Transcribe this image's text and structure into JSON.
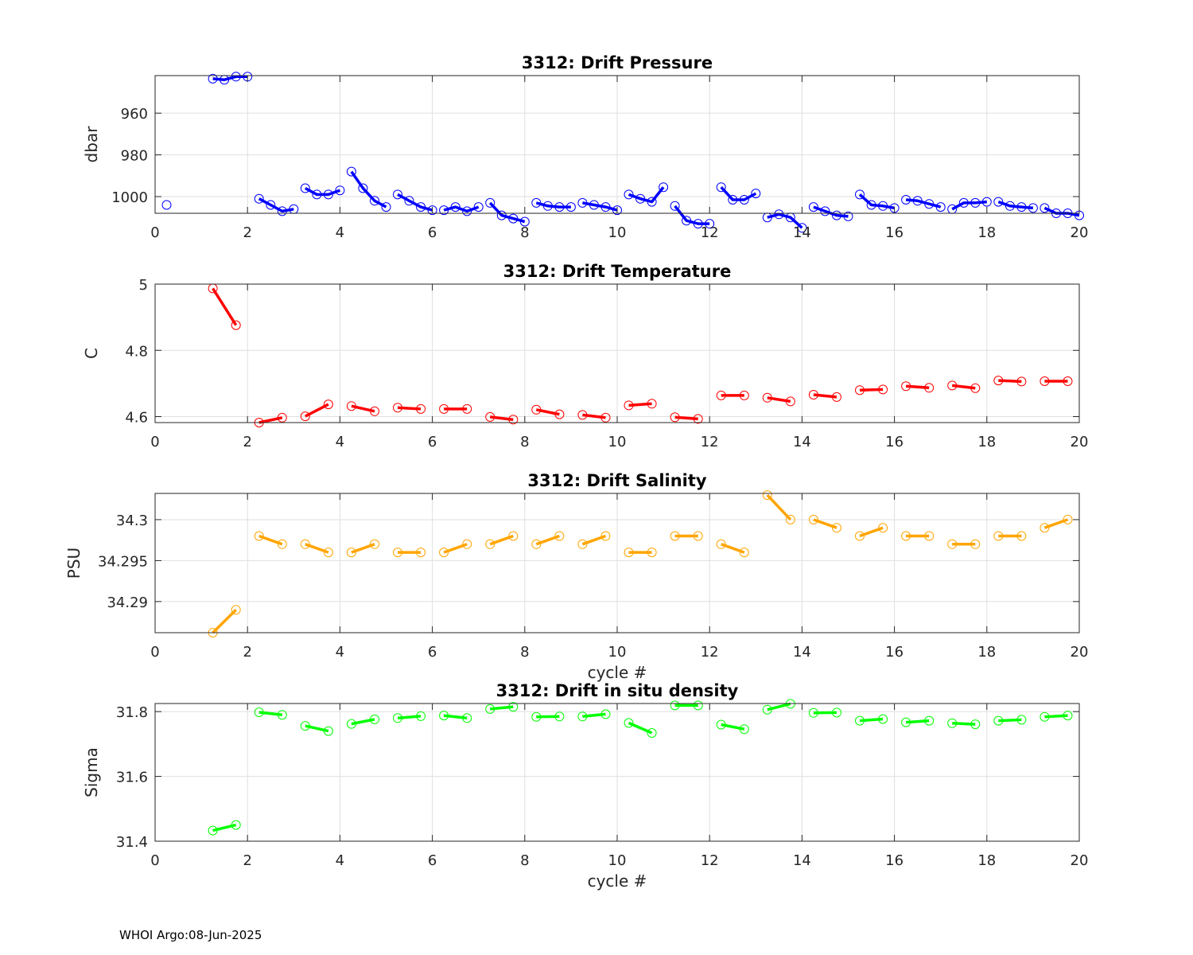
{
  "footer": "WHOI Argo:08-Jun-2025",
  "chart_data": [
    {
      "type": "line",
      "title": "3312: Drift Pressure",
      "xlabel": "",
      "ylabel": "dbar",
      "xlim": [
        0,
        20
      ],
      "ylim": [
        1008,
        942
      ],
      "y_reversed": true,
      "xticks": [
        0,
        2,
        4,
        6,
        8,
        10,
        12,
        14,
        16,
        18,
        20
      ],
      "yticks": [
        960,
        980,
        1000
      ],
      "grid": true,
      "color": "#0000ff",
      "series": [
        {
          "x": [
            0.25
          ],
          "y": [
            1004
          ]
        },
        {
          "x": [
            1.25,
            1.5,
            1.75,
            2.0
          ],
          "y": [
            943.5,
            944,
            942.5,
            942.5
          ]
        },
        {
          "x": [
            2.25,
            2.5,
            2.75,
            3.0
          ],
          "y": [
            1001,
            1004,
            1007,
            1006
          ]
        },
        {
          "x": [
            3.25,
            3.5,
            3.75,
            4.0
          ],
          "y": [
            996,
            999,
            999,
            997
          ]
        },
        {
          "x": [
            4.25,
            4.5,
            4.75,
            5.0
          ],
          "y": [
            988,
            996,
            1002,
            1005
          ]
        },
        {
          "x": [
            5.25,
            5.5,
            5.75,
            6.0
          ],
          "y": [
            999,
            1002,
            1005,
            1006.5
          ]
        },
        {
          "x": [
            6.25,
            6.5,
            6.75,
            7.0
          ],
          "y": [
            1006.5,
            1005,
            1007,
            1005
          ]
        },
        {
          "x": [
            7.25,
            7.5,
            7.75,
            8.0
          ],
          "y": [
            1003,
            1009,
            1010.5,
            1012
          ]
        },
        {
          "x": [
            8.25,
            8.5,
            8.75,
            9.0
          ],
          "y": [
            1003,
            1004.5,
            1005,
            1005
          ]
        },
        {
          "x": [
            9.25,
            9.5,
            9.75,
            10.0
          ],
          "y": [
            1003,
            1004,
            1005,
            1006.5
          ]
        },
        {
          "x": [
            10.25,
            10.5,
            10.75,
            11.0
          ],
          "y": [
            999,
            1001,
            1002.5,
            995.5
          ]
        },
        {
          "x": [
            11.25,
            11.5,
            11.75,
            12.0
          ],
          "y": [
            1004.5,
            1011.5,
            1013,
            1013
          ]
        },
        {
          "x": [
            12.25,
            12.5,
            12.75,
            13.0
          ],
          "y": [
            995.5,
            1001.5,
            1001.5,
            998.5
          ]
        },
        {
          "x": [
            13.25,
            13.5,
            13.75,
            14.0
          ],
          "y": [
            1010,
            1008.5,
            1010,
            1015
          ]
        },
        {
          "x": [
            14.25,
            14.5,
            14.75,
            15.0
          ],
          "y": [
            1005,
            1007,
            1009,
            1009.5
          ]
        },
        {
          "x": [
            15.25,
            15.5,
            15.75,
            16.0
          ],
          "y": [
            999,
            1004,
            1004.5,
            1005.5
          ]
        },
        {
          "x": [
            16.25,
            16.5,
            16.75,
            17.0
          ],
          "y": [
            1001.5,
            1002,
            1003.5,
            1005
          ]
        },
        {
          "x": [
            17.25,
            17.5,
            17.75,
            18.0
          ],
          "y": [
            1006,
            1003,
            1003,
            1002.5
          ]
        },
        {
          "x": [
            18.25,
            18.5,
            18.75,
            19.0
          ],
          "y": [
            1002.5,
            1004.5,
            1005,
            1005.5
          ]
        },
        {
          "x": [
            19.25,
            19.5,
            19.75,
            20.0
          ],
          "y": [
            1005.5,
            1008,
            1008,
            1009
          ]
        }
      ]
    },
    {
      "type": "line",
      "title": "3312: Drift Temperature",
      "xlabel": "",
      "ylabel": "C",
      "xlim": [
        0,
        20
      ],
      "ylim": [
        4.582,
        5.0
      ],
      "xticks": [
        0,
        2,
        4,
        6,
        8,
        10,
        12,
        14,
        16,
        18,
        20
      ],
      "yticks": [
        4.6,
        4.8,
        5
      ],
      "ytick_labels": [
        "4.6",
        "4.8",
        "5"
      ],
      "grid": true,
      "color": "#ff0000",
      "series": [
        {
          "x": [
            1.25,
            1.75
          ],
          "y": [
            4.987,
            4.876
          ]
        },
        {
          "x": [
            2.25,
            2.75
          ],
          "y": [
            4.582,
            4.597
          ]
        },
        {
          "x": [
            3.25,
            3.75
          ],
          "y": [
            4.601,
            4.637
          ]
        },
        {
          "x": [
            4.25,
            4.75
          ],
          "y": [
            4.632,
            4.616
          ]
        },
        {
          "x": [
            5.25,
            5.75
          ],
          "y": [
            4.627,
            4.623
          ]
        },
        {
          "x": [
            6.25,
            6.75
          ],
          "y": [
            4.623,
            4.623
          ]
        },
        {
          "x": [
            7.25,
            7.75
          ],
          "y": [
            4.599,
            4.591
          ]
        },
        {
          "x": [
            8.25,
            8.75
          ],
          "y": [
            4.621,
            4.607
          ]
        },
        {
          "x": [
            9.25,
            9.75
          ],
          "y": [
            4.605,
            4.597
          ]
        },
        {
          "x": [
            10.25,
            10.75
          ],
          "y": [
            4.634,
            4.639
          ]
        },
        {
          "x": [
            11.25,
            11.75
          ],
          "y": [
            4.598,
            4.593
          ]
        },
        {
          "x": [
            12.25,
            12.75
          ],
          "y": [
            4.664,
            4.664
          ]
        },
        {
          "x": [
            13.25,
            13.75
          ],
          "y": [
            4.657,
            4.646
          ]
        },
        {
          "x": [
            14.25,
            14.75
          ],
          "y": [
            4.666,
            4.659
          ]
        },
        {
          "x": [
            15.25,
            15.75
          ],
          "y": [
            4.68,
            4.682
          ]
        },
        {
          "x": [
            16.25,
            16.75
          ],
          "y": [
            4.692,
            4.687
          ]
        },
        {
          "x": [
            17.25,
            17.75
          ],
          "y": [
            4.694,
            4.686
          ]
        },
        {
          "x": [
            18.25,
            18.75
          ],
          "y": [
            4.709,
            4.706
          ]
        },
        {
          "x": [
            19.25,
            19.75
          ],
          "y": [
            4.707,
            4.707
          ]
        }
      ]
    },
    {
      "type": "line",
      "title": "3312: Drift Salinity",
      "xlabel": "cycle #",
      "ylabel": "PSU",
      "xlim": [
        0,
        20
      ],
      "ylim": [
        34.2862,
        34.3032
      ],
      "xticks": [
        0,
        2,
        4,
        6,
        8,
        10,
        12,
        14,
        16,
        18,
        20
      ],
      "yticks": [
        34.29,
        34.295,
        34.3
      ],
      "ytick_labels": [
        "34.29",
        "34.295",
        "34.3"
      ],
      "grid": true,
      "color": "#ffa500",
      "series": [
        {
          "x": [
            1.25,
            1.75
          ],
          "y": [
            34.2862,
            34.289
          ]
        },
        {
          "x": [
            2.25,
            2.75
          ],
          "y": [
            34.298,
            34.297
          ]
        },
        {
          "x": [
            3.25,
            3.75
          ],
          "y": [
            34.297,
            34.296
          ]
        },
        {
          "x": [
            4.25,
            4.75
          ],
          "y": [
            34.296,
            34.297
          ]
        },
        {
          "x": [
            5.25,
            5.75
          ],
          "y": [
            34.296,
            34.296
          ]
        },
        {
          "x": [
            6.25,
            6.75
          ],
          "y": [
            34.296,
            34.297
          ]
        },
        {
          "x": [
            7.25,
            7.75
          ],
          "y": [
            34.297,
            34.298
          ]
        },
        {
          "x": [
            8.25,
            8.75
          ],
          "y": [
            34.297,
            34.298
          ]
        },
        {
          "x": [
            9.25,
            9.75
          ],
          "y": [
            34.297,
            34.298
          ]
        },
        {
          "x": [
            10.25,
            10.75
          ],
          "y": [
            34.296,
            34.296
          ]
        },
        {
          "x": [
            11.25,
            11.75
          ],
          "y": [
            34.298,
            34.298
          ]
        },
        {
          "x": [
            12.25,
            12.75
          ],
          "y": [
            34.297,
            34.296
          ]
        },
        {
          "x": [
            13.25,
            13.75
          ],
          "y": [
            34.303,
            34.3
          ]
        },
        {
          "x": [
            14.25,
            14.75
          ],
          "y": [
            34.3,
            34.299
          ]
        },
        {
          "x": [
            15.25,
            15.75
          ],
          "y": [
            34.298,
            34.299
          ]
        },
        {
          "x": [
            16.25,
            16.75
          ],
          "y": [
            34.298,
            34.298
          ]
        },
        {
          "x": [
            17.25,
            17.75
          ],
          "y": [
            34.297,
            34.297
          ]
        },
        {
          "x": [
            18.25,
            18.75
          ],
          "y": [
            34.298,
            34.298
          ]
        },
        {
          "x": [
            19.25,
            19.75
          ],
          "y": [
            34.299,
            34.3
          ]
        }
      ]
    },
    {
      "type": "line",
      "title": "3312: Drift in situ density",
      "xlabel": "cycle #",
      "ylabel": "Sigma",
      "xlim": [
        0,
        20
      ],
      "ylim": [
        31.4,
        31.825
      ],
      "xticks": [
        0,
        2,
        4,
        6,
        8,
        10,
        12,
        14,
        16,
        18,
        20
      ],
      "yticks": [
        31.4,
        31.6,
        31.8
      ],
      "ytick_labels": [
        "31.4",
        "31.6",
        "31.8"
      ],
      "grid": true,
      "color": "#00ff00",
      "series": [
        {
          "x": [
            1.25,
            1.75
          ],
          "y": [
            31.433,
            31.45
          ]
        },
        {
          "x": [
            2.25,
            2.75
          ],
          "y": [
            31.798,
            31.79
          ]
        },
        {
          "x": [
            3.25,
            3.75
          ],
          "y": [
            31.756,
            31.74
          ]
        },
        {
          "x": [
            4.25,
            4.75
          ],
          "y": [
            31.762,
            31.776
          ]
        },
        {
          "x": [
            5.25,
            5.75
          ],
          "y": [
            31.78,
            31.786
          ]
        },
        {
          "x": [
            6.25,
            6.75
          ],
          "y": [
            31.788,
            31.78
          ]
        },
        {
          "x": [
            7.25,
            7.75
          ],
          "y": [
            31.808,
            31.815
          ]
        },
        {
          "x": [
            8.25,
            8.75
          ],
          "y": [
            31.784,
            31.785
          ]
        },
        {
          "x": [
            9.25,
            9.75
          ],
          "y": [
            31.785,
            31.792
          ]
        },
        {
          "x": [
            10.25,
            10.75
          ],
          "y": [
            31.765,
            31.734
          ]
        },
        {
          "x": [
            11.25,
            11.75
          ],
          "y": [
            31.819,
            31.819
          ]
        },
        {
          "x": [
            12.25,
            12.75
          ],
          "y": [
            31.76,
            31.746
          ]
        },
        {
          "x": [
            13.25,
            13.75
          ],
          "y": [
            31.806,
            31.824
          ]
        },
        {
          "x": [
            14.25,
            14.75
          ],
          "y": [
            31.796,
            31.797
          ]
        },
        {
          "x": [
            15.25,
            15.75
          ],
          "y": [
            31.772,
            31.777
          ]
        },
        {
          "x": [
            16.25,
            16.75
          ],
          "y": [
            31.767,
            31.772
          ]
        },
        {
          "x": [
            17.25,
            17.75
          ],
          "y": [
            31.764,
            31.761
          ]
        },
        {
          "x": [
            18.25,
            18.75
          ],
          "y": [
            31.772,
            31.775
          ]
        },
        {
          "x": [
            19.25,
            19.75
          ],
          "y": [
            31.784,
            31.788
          ]
        }
      ]
    }
  ]
}
